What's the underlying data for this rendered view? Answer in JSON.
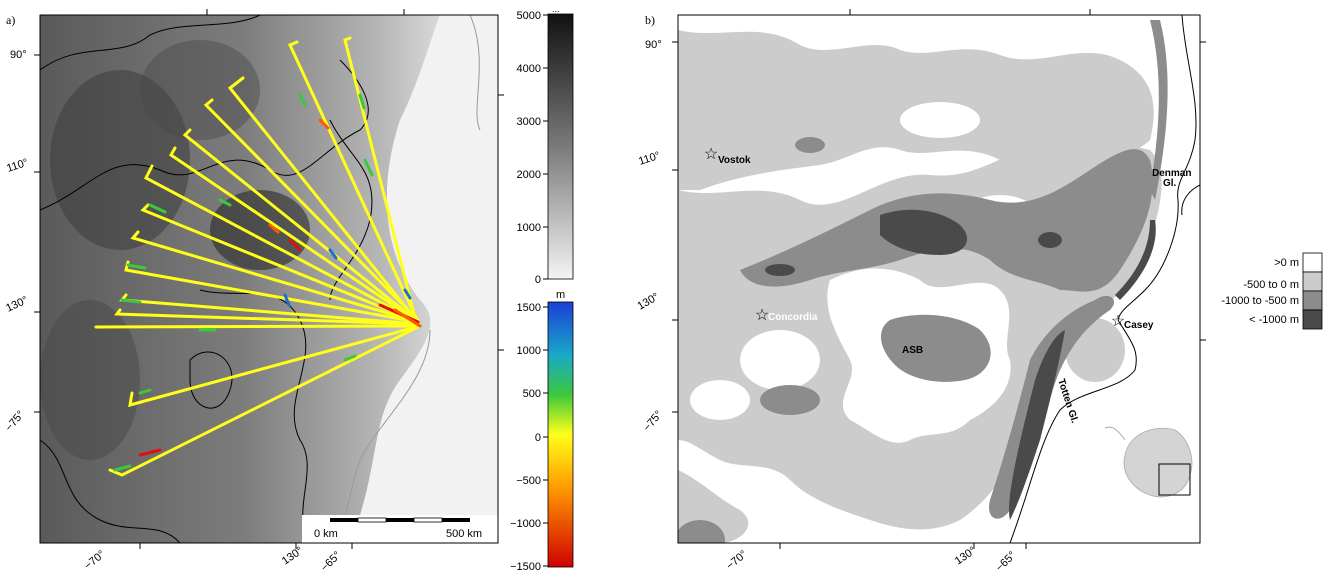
{
  "panel_a": {
    "label": "a)",
    "lat_labels": [
      "90°",
      "110°",
      "130°",
      "−75°"
    ],
    "lon_labels": [
      "−70°",
      "130°",
      "−65°"
    ],
    "scale_bar": {
      "left_label": "0 km",
      "right_label": "500 km"
    },
    "elevation_colorbar": {
      "unit_label": "...",
      "ticks": [
        "5000",
        "4000",
        "3000",
        "2000",
        "1000",
        "0"
      ],
      "min": 0,
      "max": 5000
    },
    "misfit_colorbar": {
      "unit_label": "m",
      "ticks": [
        "1500",
        "1000",
        "500",
        "0",
        "−500",
        "−1000",
        "−1500"
      ],
      "min": -1500,
      "max": 1500
    },
    "track_colors": {
      "positive": "#1a6fd6",
      "mid_high": "#3cc83c",
      "zero": "#ffff1a",
      "mid_low": "#ff9a00",
      "negative": "#e01010"
    }
  },
  "panel_b": {
    "label": "b)",
    "lat_labels": [
      "90°",
      "110°",
      "130°",
      "−75°"
    ],
    "lon_labels": [
      "−70°",
      "130°",
      "−65°"
    ],
    "places": {
      "vostok": "Vostok",
      "concordia": "Concordia",
      "casey": "Casey",
      "asb": "ASB",
      "denman_1": "Denman",
      "denman_2": "Gl.",
      "totten": "Totten Gl."
    },
    "legend": {
      "items": [
        {
          "label": ">0 m",
          "color": "#ffffff"
        },
        {
          "label": "-500 to 0 m",
          "color": "#cccccc"
        },
        {
          "label": "-1000 to -500 m",
          "color": "#8c8c8c"
        },
        {
          "label": "< -1000 m",
          "color": "#4a4a4a"
        }
      ]
    }
  }
}
